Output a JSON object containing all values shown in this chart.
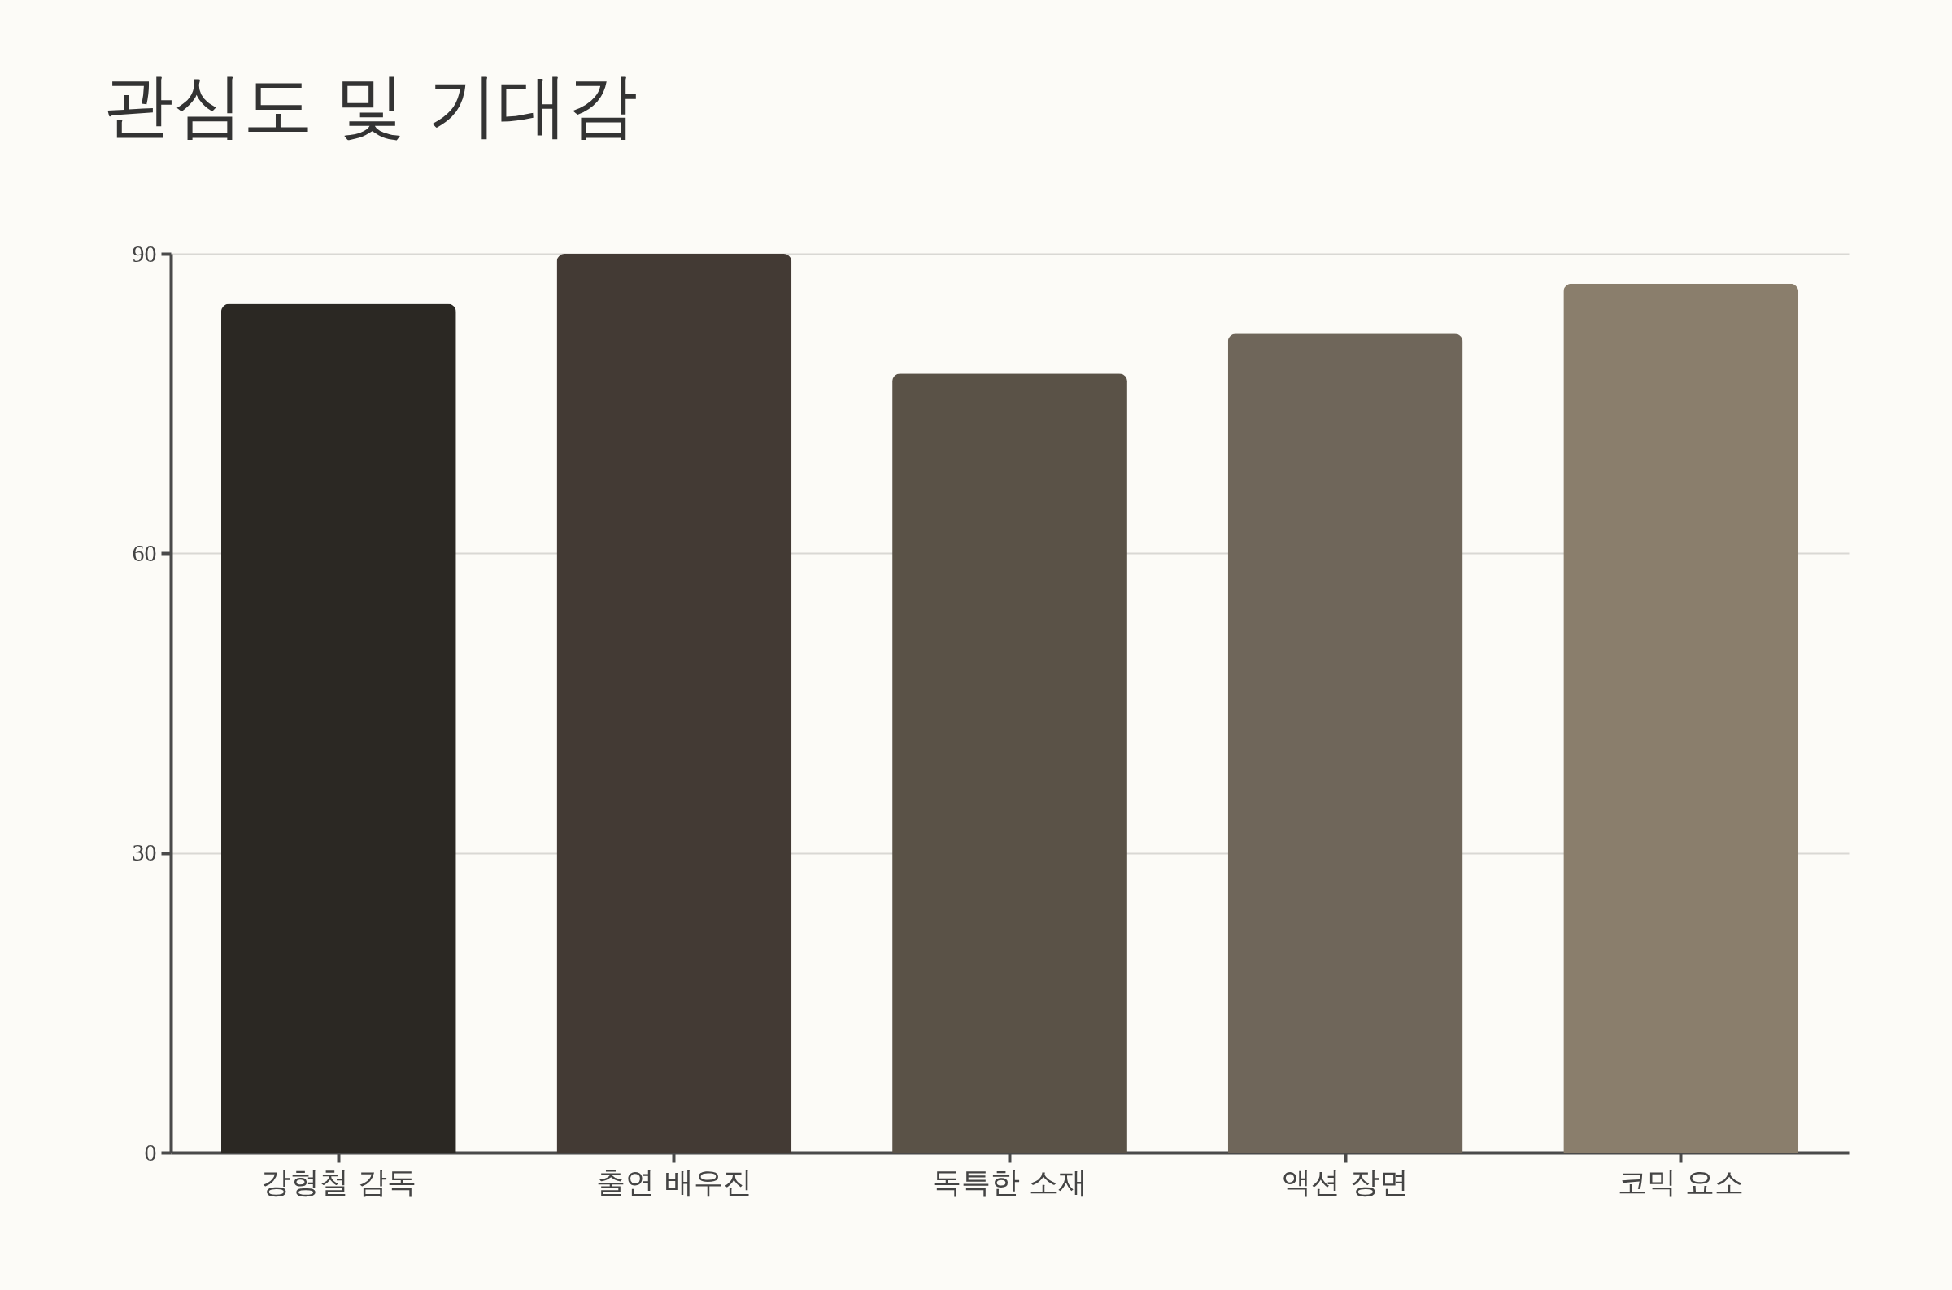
{
  "chart_data": {
    "type": "bar",
    "title": "관심도 및 기대감",
    "categories": [
      "강형철 감독",
      "출연 배우진",
      "독특한 소재",
      "액션 장면",
      "코믹 요소"
    ],
    "values": [
      85,
      90,
      78,
      82,
      87
    ],
    "colors": [
      "#2b2823",
      "#433a34",
      "#5a5247",
      "#6f665a",
      "#8a7e6c"
    ],
    "ylim": [
      0,
      90
    ],
    "yticks": [
      0,
      30,
      60,
      90
    ],
    "grid": "y"
  }
}
